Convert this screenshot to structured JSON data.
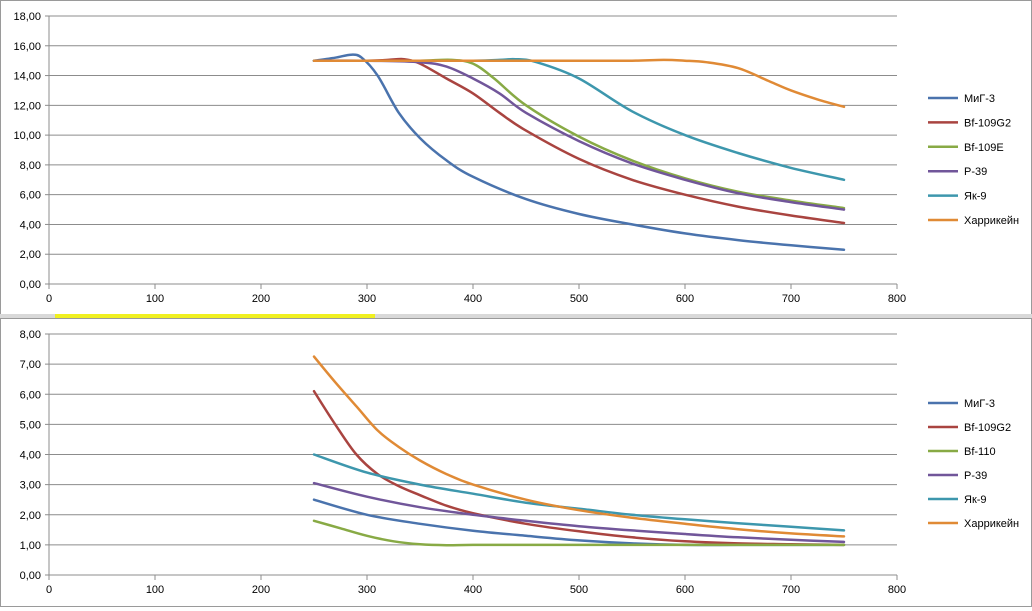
{
  "colors": {
    "mig3": "#4a73ad",
    "bf109g2": "#a94440",
    "bf109e": "#88aa45",
    "bf110": "#88aa45",
    "p39": "#71569a",
    "yak9": "#3d97ad",
    "hurricane": "#e08a35",
    "grid": "#8c8c8c",
    "axis": "#8c8c8c"
  },
  "chart_data": [
    {
      "type": "line",
      "x_ticks": [
        "0",
        "100",
        "200",
        "300",
        "400",
        "500",
        "600",
        "700",
        "800"
      ],
      "y_ticks": [
        "0,00",
        "2,00",
        "4,00",
        "6,00",
        "8,00",
        "10,00",
        "12,00",
        "14,00",
        "16,00",
        "18,00"
      ],
      "xlim": [
        0,
        800
      ],
      "ylim": [
        0,
        18
      ],
      "grid": "horizontal",
      "legend_position": "right",
      "series": [
        {
          "name": "МиГ-3",
          "color_key": "mig3",
          "x": [
            250,
            270,
            285,
            295,
            310,
            330,
            350,
            375,
            400,
            450,
            500,
            550,
            600,
            650,
            700,
            750
          ],
          "y": [
            15.0,
            15.2,
            15.4,
            15.2,
            14.0,
            11.5,
            9.8,
            8.3,
            7.2,
            5.7,
            4.7,
            4.0,
            3.4,
            2.95,
            2.6,
            2.3
          ]
        },
        {
          "name": "Bf-109G2",
          "color_key": "bf109g2",
          "x": [
            250,
            300,
            320,
            335,
            350,
            375,
            400,
            425,
            450,
            500,
            550,
            600,
            650,
            700,
            750
          ],
          "y": [
            15.0,
            15.0,
            15.05,
            15.1,
            14.8,
            13.8,
            12.8,
            11.5,
            10.3,
            8.4,
            7.0,
            6.0,
            5.2,
            4.6,
            4.1
          ]
        },
        {
          "name": "Bf-109E",
          "color_key": "bf109e",
          "x": [
            250,
            300,
            350,
            380,
            400,
            420,
            450,
            500,
            550,
            600,
            650,
            700,
            750
          ],
          "y": [
            15.0,
            15.0,
            15.0,
            15.05,
            14.8,
            13.8,
            12.0,
            9.9,
            8.3,
            7.1,
            6.2,
            5.6,
            5.1
          ]
        },
        {
          "name": "P-39",
          "color_key": "p39",
          "x": [
            250,
            300,
            350,
            375,
            400,
            425,
            450,
            500,
            550,
            600,
            650,
            700,
            750
          ],
          "y": [
            15.0,
            15.0,
            14.9,
            14.6,
            13.8,
            12.8,
            11.5,
            9.6,
            8.1,
            7.0,
            6.1,
            5.5,
            5.0
          ]
        },
        {
          "name": "Як-9",
          "color_key": "yak9",
          "x": [
            250,
            300,
            350,
            400,
            425,
            440,
            460,
            500,
            550,
            600,
            650,
            700,
            750
          ],
          "y": [
            15.0,
            15.0,
            15.0,
            15.0,
            15.05,
            15.1,
            14.9,
            13.8,
            11.6,
            10.0,
            8.8,
            7.8,
            7.0
          ]
        },
        {
          "name": "Харрикейн",
          "color_key": "hurricane",
          "x": [
            250,
            300,
            350,
            400,
            450,
            500,
            550,
            580,
            600,
            620,
            650,
            680,
            700,
            725,
            750
          ],
          "y": [
            15.0,
            15.0,
            15.0,
            15.0,
            15.0,
            15.0,
            15.0,
            15.05,
            15.0,
            14.9,
            14.5,
            13.6,
            13.0,
            12.4,
            11.9
          ]
        }
      ]
    },
    {
      "type": "line",
      "x_ticks": [
        "0",
        "100",
        "200",
        "300",
        "400",
        "500",
        "600",
        "700",
        "800"
      ],
      "y_ticks": [
        "0,00",
        "1,00",
        "2,00",
        "3,00",
        "4,00",
        "5,00",
        "6,00",
        "7,00",
        "8,00"
      ],
      "xlim": [
        0,
        800
      ],
      "ylim": [
        0,
        8
      ],
      "grid": "horizontal",
      "legend_position": "right",
      "series": [
        {
          "name": "МиГ-3",
          "color_key": "mig3",
          "x": [
            250,
            300,
            350,
            400,
            450,
            500,
            550,
            600,
            650,
            700,
            750
          ],
          "y": [
            2.5,
            2.0,
            1.7,
            1.47,
            1.3,
            1.15,
            1.05,
            1.0,
            1.0,
            1.0,
            1.0
          ]
        },
        {
          "name": "Bf-109G2",
          "color_key": "bf109g2",
          "x": [
            250,
            270,
            290,
            310,
            330,
            350,
            375,
            400,
            450,
            500,
            550,
            600,
            650,
            700,
            750
          ],
          "y": [
            6.1,
            5.0,
            4.0,
            3.35,
            2.95,
            2.65,
            2.3,
            2.05,
            1.7,
            1.45,
            1.25,
            1.12,
            1.05,
            1.02,
            1.0
          ]
        },
        {
          "name": "Bf-110",
          "color_key": "bf110",
          "x": [
            250,
            275,
            300,
            325,
            350,
            375,
            400,
            450,
            500,
            550,
            600,
            650,
            700,
            750
          ],
          "y": [
            1.8,
            1.55,
            1.3,
            1.12,
            1.02,
            0.99,
            1.0,
            1.0,
            1.0,
            1.0,
            1.0,
            1.0,
            1.0,
            1.0
          ]
        },
        {
          "name": "P-39",
          "color_key": "p39",
          "x": [
            250,
            300,
            350,
            400,
            450,
            500,
            550,
            600,
            650,
            700,
            750
          ],
          "y": [
            3.05,
            2.6,
            2.25,
            2.0,
            1.8,
            1.62,
            1.48,
            1.36,
            1.25,
            1.17,
            1.1
          ]
        },
        {
          "name": "Як-9",
          "color_key": "yak9",
          "x": [
            250,
            300,
            350,
            400,
            450,
            500,
            550,
            600,
            650,
            700,
            750
          ],
          "y": [
            4.0,
            3.4,
            3.0,
            2.7,
            2.4,
            2.2,
            2.0,
            1.85,
            1.72,
            1.6,
            1.48
          ]
        },
        {
          "name": "Харрикейн",
          "color_key": "hurricane",
          "x": [
            250,
            270,
            290,
            310,
            330,
            350,
            375,
            400,
            450,
            500,
            550,
            600,
            650,
            700,
            750
          ],
          "y": [
            7.25,
            6.4,
            5.6,
            4.8,
            4.25,
            3.8,
            3.35,
            3.0,
            2.5,
            2.15,
            1.9,
            1.7,
            1.52,
            1.38,
            1.28
          ]
        }
      ]
    }
  ]
}
